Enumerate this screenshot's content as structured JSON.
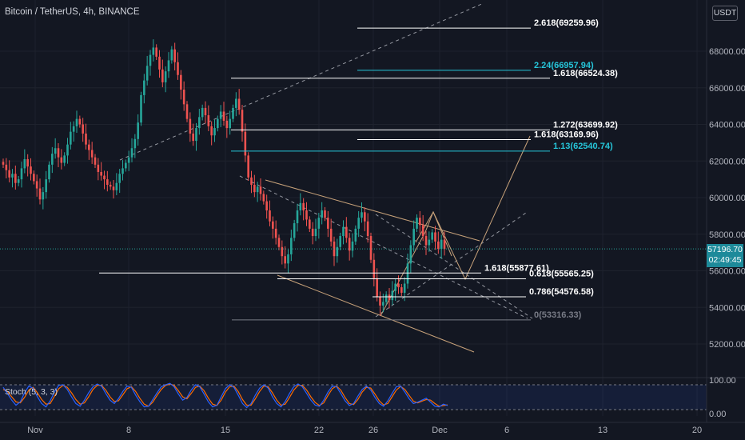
{
  "header": {
    "title": "Bitcoin / TetherUS, 4h, BINANCE",
    "currency": "USDT"
  },
  "last_price": {
    "value": "57196.70",
    "countdown": "02:49:45"
  },
  "oscillator": {
    "label": "Stoch (5, 3, 3)",
    "ticks": [
      "100.00",
      "0.00"
    ]
  },
  "colors": {
    "background": "#131722",
    "up": "#26a69a",
    "down": "#ef5350",
    "level_white": "#ffffff",
    "level_teal": "#26c6da",
    "channel": "#c8a27a",
    "dashed": "#9598a1",
    "stoch_k": "#2962ff",
    "stoch_d": "#ff6d00"
  },
  "chart_data": {
    "type": "candlestick",
    "title": "",
    "x_ticks": [
      "Nov",
      "8",
      "15",
      "22",
      "26",
      "Dec",
      "6",
      "13",
      "20"
    ],
    "y_ticks": [
      52000,
      54000,
      56000,
      58000,
      60000,
      62000,
      64000,
      66000,
      68000
    ],
    "y_ticks_labels": [
      "52000.00",
      "54000.00",
      "56000.00",
      "58000.00",
      "60000.00",
      "62000.00",
      "64000.00",
      "66000.00",
      "68000.00"
    ],
    "ylim": [
      51000,
      70500
    ],
    "last_price": 57196.7,
    "close_series": [
      61800,
      61500,
      61100,
      61300,
      60800,
      61000,
      61600,
      62100,
      61700,
      61300,
      60900,
      60500,
      59900,
      60300,
      61000,
      61800,
      62400,
      62700,
      62200,
      61900,
      62300,
      62900,
      63600,
      63900,
      64300,
      64000,
      63500,
      62900,
      62600,
      62200,
      61800,
      61400,
      61200,
      61000,
      60700,
      60600,
      60400,
      60800,
      61300,
      61600,
      61900,
      62200,
      62700,
      63200,
      64100,
      65600,
      66400,
      67200,
      67800,
      68200,
      67700,
      67000,
      66300,
      66900,
      67500,
      68100,
      67400,
      66700,
      65900,
      65100,
      64300,
      63500,
      63100,
      63800,
      64400,
      64900,
      64500,
      63900,
      63400,
      63800,
      64300,
      64700,
      64200,
      63800,
      64300,
      64900,
      65400,
      64800,
      63600,
      62300,
      61100,
      60700,
      60300,
      60600,
      60200,
      59800,
      59300,
      58700,
      58300,
      57800,
      57300,
      56800,
      56400,
      56900,
      57800,
      58600,
      59300,
      59700,
      59300,
      58800,
      58300,
      57900,
      58300,
      58900,
      59300,
      58900,
      58300,
      57600,
      56800,
      57300,
      57900,
      58400,
      57800,
      57100,
      57600,
      58300,
      58900,
      59200,
      58700,
      57900,
      56600,
      55600,
      54600,
      54100,
      54300,
      54700,
      54400,
      54900,
      55300,
      55100,
      54800,
      55300,
      56400,
      57400,
      58300,
      58900,
      58500,
      57900,
      57400,
      57700,
      58100,
      57600,
      57200,
      57700,
      57196.7
    ],
    "stoch_k": [
      78,
      60,
      40,
      25,
      35,
      62,
      82,
      75,
      50,
      30,
      20,
      38,
      65,
      84,
      86,
      72,
      50,
      30,
      22,
      40,
      62,
      80,
      88,
      82,
      60,
      40,
      30,
      45,
      66,
      82,
      78,
      55,
      35,
      20,
      22,
      42,
      62,
      80,
      86,
      90,
      80,
      58,
      40,
      48,
      70,
      86,
      80,
      58,
      35,
      20,
      25,
      50,
      74,
      86,
      78,
      55,
      30,
      18,
      30,
      55,
      76,
      86,
      76,
      50,
      30,
      20,
      36,
      60,
      80,
      88,
      80,
      60,
      40,
      25,
      22,
      40,
      64,
      82,
      80,
      60,
      38,
      24,
      30,
      52,
      72,
      82,
      70,
      48,
      30,
      22,
      38,
      60,
      80,
      82,
      64,
      44,
      30,
      34,
      40,
      46,
      34,
      22,
      20,
      28,
      24
    ],
    "stoch_d": [
      72,
      66,
      50,
      35,
      32,
      48,
      70,
      78,
      62,
      42,
      28,
      30,
      52,
      74,
      84,
      78,
      62,
      42,
      28,
      32,
      50,
      72,
      84,
      84,
      70,
      50,
      36,
      38,
      56,
      74,
      80,
      66,
      45,
      28,
      22,
      34,
      54,
      72,
      84,
      88,
      84,
      68,
      50,
      44,
      60,
      78,
      82,
      68,
      46,
      28,
      24,
      40,
      64,
      80,
      82,
      66,
      42,
      25,
      25,
      44,
      66,
      82,
      80,
      62,
      40,
      25,
      28,
      48,
      70,
      84,
      84,
      70,
      50,
      33,
      24,
      32,
      54,
      74,
      82,
      70,
      48,
      30,
      27,
      42,
      64,
      78,
      76,
      58,
      38,
      26,
      30,
      50,
      70,
      81,
      72,
      54,
      37,
      32,
      37,
      42,
      40,
      30,
      22,
      24,
      26
    ],
    "levels": [
      {
        "label": "2.618(69259.96)",
        "value": 69259.96,
        "color": "white"
      },
      {
        "label": "2.24(66957.94)",
        "value": 66957.94,
        "color": "teal"
      },
      {
        "label": "1.618(66524.38)",
        "value": 66524.38,
        "color": "white"
      },
      {
        "label": "1.272(63699.92)",
        "value": 63699.92,
        "color": "white"
      },
      {
        "label": "1.618(63169.96)",
        "value": 63169.96,
        "color": "white"
      },
      {
        "label": "1.13(62540.74)",
        "value": 62540.74,
        "color": "teal"
      },
      {
        "label": "1.618(55877.61)",
        "value": 55877.61,
        "color": "white"
      },
      {
        "label": "0.618(55565.25)",
        "value": 55565.25,
        "color": "white"
      },
      {
        "label": "0.786(54576.58)",
        "value": 54576.58,
        "color": "white"
      },
      {
        "label": "0(53316.33)",
        "value": 53316.33,
        "color": "grey"
      }
    ]
  }
}
